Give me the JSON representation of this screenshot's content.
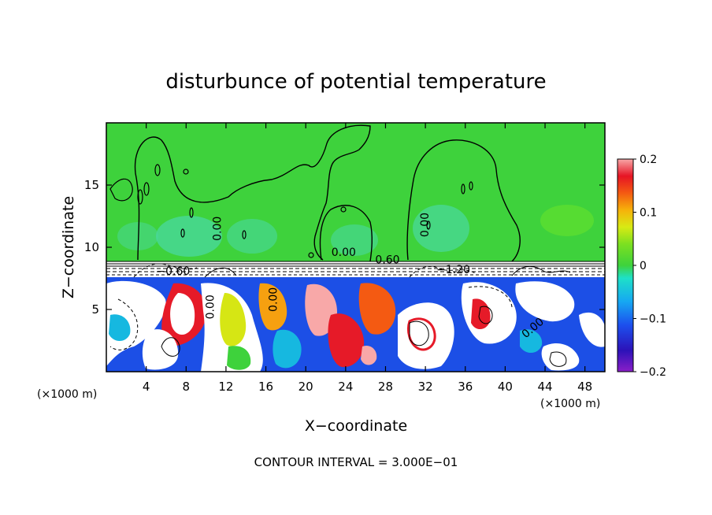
{
  "chart_data": {
    "type": "heatmap",
    "title": "disturbunce of potential temperature",
    "xlabel": "X−coordinate",
    "ylabel": "Z−coordinate",
    "x_unit_left": "(×1000 m)",
    "x_unit_right": "(×1000 m)",
    "xlim": [
      0,
      50
    ],
    "ylim": [
      0,
      20
    ],
    "x_ticks": [
      4,
      8,
      12,
      16,
      20,
      24,
      28,
      32,
      36,
      40,
      44,
      48
    ],
    "y_ticks": [
      5,
      10,
      15
    ],
    "colorbar": {
      "min": -0.2,
      "max": 0.2,
      "tick_values": [
        0.2,
        0.1,
        0,
        -0.1,
        -0.2
      ],
      "tick_labels": [
        "0.2",
        "0.1",
        "0",
        "−0.1",
        "−0.2"
      ]
    },
    "contour_labels": [
      {
        "text": "0.00",
        "x": 11.5,
        "z": 11.5,
        "rot": -90
      },
      {
        "text": "0.00",
        "x": 23.8,
        "z": 9.3,
        "rot": 0
      },
      {
        "text": "0.00",
        "x": 32.3,
        "z": 11.8,
        "rot": -90
      },
      {
        "text": "−0.60",
        "x": 6.7,
        "z": 7.8,
        "rot": 0
      },
      {
        "text": "0.60",
        "x": 28.2,
        "z": 8.7,
        "rot": 0
      },
      {
        "text": "−1.20",
        "x": 34.8,
        "z": 7.9,
        "rot": 0
      },
      {
        "text": "0.00",
        "x": 17.1,
        "z": 5.8,
        "rot": -90
      },
      {
        "text": "0.00",
        "x": 10.8,
        "z": 5.2,
        "rot": -90
      },
      {
        "text": "0.00",
        "x": 43.0,
        "z": 3.3,
        "rot": -40
      }
    ],
    "footer": "CONTOUR INTERVAL = 3.000E−01"
  }
}
